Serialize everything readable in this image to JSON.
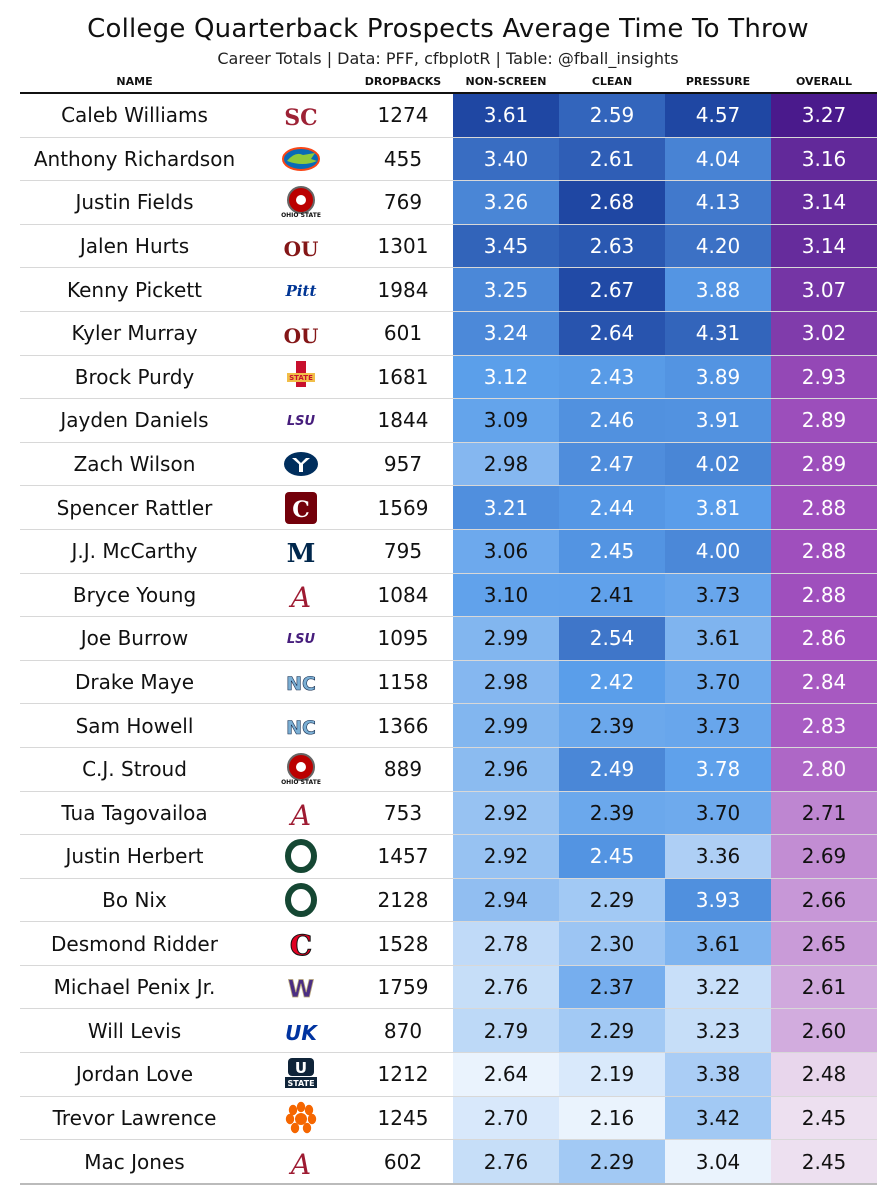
{
  "title": "College Quarterback Prospects Average Time To Throw",
  "subtitle": "Career Totals | Data: PFF, cfbplotR | Table: @fball_insights",
  "columns": {
    "name": "NAME",
    "logo": "",
    "dropbacks": "DROPBACKS",
    "non_screen": "NON-SCREEN",
    "clean": "CLEAN",
    "pressure": "PRESSURE",
    "overall": "OVERALL"
  },
  "colors": {
    "blue_light": "#eaf3fd",
    "blue_mid": "#5a9eea",
    "blue_dark": "#1f47a3",
    "purple_light": "#ede0f0",
    "purple_mid": "#a352bf",
    "purple_dark": "#4a1a8c"
  },
  "chart_data": {
    "type": "table",
    "title": "College Quarterback Prospects Average Time To Throw",
    "subtitle": "Career Totals | Data: PFF, cfbplotR | Table: @fball_insights",
    "headers": [
      "NAME",
      "",
      "DROPBACKS",
      "NON-SCREEN",
      "CLEAN",
      "PRESSURE",
      "OVERALL"
    ],
    "rows": [
      {
        "name": "Caleb Williams",
        "school": "usc",
        "dropbacks": "1274",
        "non_screen": "3.61",
        "clean": "2.59",
        "pressure": "4.57",
        "overall": "3.27"
      },
      {
        "name": "Anthony Richardson",
        "school": "florida",
        "dropbacks": "455",
        "non_screen": "3.40",
        "clean": "2.61",
        "pressure": "4.04",
        "overall": "3.16"
      },
      {
        "name": "Justin Fields",
        "school": "ohio-state",
        "dropbacks": "769",
        "non_screen": "3.26",
        "clean": "2.68",
        "pressure": "4.13",
        "overall": "3.14"
      },
      {
        "name": "Jalen Hurts",
        "school": "oklahoma",
        "dropbacks": "1301",
        "non_screen": "3.45",
        "clean": "2.63",
        "pressure": "4.20",
        "overall": "3.14"
      },
      {
        "name": "Kenny Pickett",
        "school": "pitt",
        "dropbacks": "1984",
        "non_screen": "3.25",
        "clean": "2.67",
        "pressure": "3.88",
        "overall": "3.07"
      },
      {
        "name": "Kyler Murray",
        "school": "oklahoma",
        "dropbacks": "601",
        "non_screen": "3.24",
        "clean": "2.64",
        "pressure": "4.31",
        "overall": "3.02"
      },
      {
        "name": "Brock Purdy",
        "school": "iowa-state",
        "dropbacks": "1681",
        "non_screen": "3.12",
        "clean": "2.43",
        "pressure": "3.89",
        "overall": "2.93"
      },
      {
        "name": "Jayden Daniels",
        "school": "lsu",
        "dropbacks": "1844",
        "non_screen": "3.09",
        "clean": "2.46",
        "pressure": "3.91",
        "overall": "2.89"
      },
      {
        "name": "Zach Wilson",
        "school": "byu",
        "dropbacks": "957",
        "non_screen": "2.98",
        "clean": "2.47",
        "pressure": "4.02",
        "overall": "2.89"
      },
      {
        "name": "Spencer Rattler",
        "school": "south-carolina",
        "dropbacks": "1569",
        "non_screen": "3.21",
        "clean": "2.44",
        "pressure": "3.81",
        "overall": "2.88"
      },
      {
        "name": "J.J. McCarthy",
        "school": "michigan",
        "dropbacks": "795",
        "non_screen": "3.06",
        "clean": "2.45",
        "pressure": "4.00",
        "overall": "2.88"
      },
      {
        "name": "Bryce Young",
        "school": "alabama",
        "dropbacks": "1084",
        "non_screen": "3.10",
        "clean": "2.41",
        "pressure": "3.73",
        "overall": "2.88"
      },
      {
        "name": "Joe Burrow",
        "school": "lsu",
        "dropbacks": "1095",
        "non_screen": "2.99",
        "clean": "2.54",
        "pressure": "3.61",
        "overall": "2.86"
      },
      {
        "name": "Drake Maye",
        "school": "north-carolina",
        "dropbacks": "1158",
        "non_screen": "2.98",
        "clean": "2.42",
        "pressure": "3.70",
        "overall": "2.84"
      },
      {
        "name": "Sam Howell",
        "school": "north-carolina",
        "dropbacks": "1366",
        "non_screen": "2.99",
        "clean": "2.39",
        "pressure": "3.73",
        "overall": "2.83"
      },
      {
        "name": "C.J. Stroud",
        "school": "ohio-state",
        "dropbacks": "889",
        "non_screen": "2.96",
        "clean": "2.49",
        "pressure": "3.78",
        "overall": "2.80"
      },
      {
        "name": "Tua Tagovailoa",
        "school": "alabama",
        "dropbacks": "753",
        "non_screen": "2.92",
        "clean": "2.39",
        "pressure": "3.70",
        "overall": "2.71"
      },
      {
        "name": "Justin Herbert",
        "school": "oregon",
        "dropbacks": "1457",
        "non_screen": "2.92",
        "clean": "2.45",
        "pressure": "3.36",
        "overall": "2.69"
      },
      {
        "name": "Bo Nix",
        "school": "oregon",
        "dropbacks": "2128",
        "non_screen": "2.94",
        "clean": "2.29",
        "pressure": "3.93",
        "overall": "2.66"
      },
      {
        "name": "Desmond Ridder",
        "school": "cincinnati",
        "dropbacks": "1528",
        "non_screen": "2.78",
        "clean": "2.30",
        "pressure": "3.61",
        "overall": "2.65"
      },
      {
        "name": "Michael Penix Jr.",
        "school": "washington",
        "dropbacks": "1759",
        "non_screen": "2.76",
        "clean": "2.37",
        "pressure": "3.22",
        "overall": "2.61"
      },
      {
        "name": "Will Levis",
        "school": "kentucky",
        "dropbacks": "870",
        "non_screen": "2.79",
        "clean": "2.29",
        "pressure": "3.23",
        "overall": "2.60"
      },
      {
        "name": "Jordan Love",
        "school": "utah-state",
        "dropbacks": "1212",
        "non_screen": "2.64",
        "clean": "2.19",
        "pressure": "3.38",
        "overall": "2.48"
      },
      {
        "name": "Trevor Lawrence",
        "school": "clemson",
        "dropbacks": "1245",
        "non_screen": "2.70",
        "clean": "2.16",
        "pressure": "3.42",
        "overall": "2.45"
      },
      {
        "name": "Mac Jones",
        "school": "alabama",
        "dropbacks": "602",
        "non_screen": "2.76",
        "clean": "2.29",
        "pressure": "3.04",
        "overall": "2.45"
      }
    ],
    "logo_marks": {
      "usc": "SC",
      "florida": "",
      "ohio-state": "OHIO STATE",
      "oklahoma": "OU",
      "pitt": "Pitt",
      "iowa-state": "I STATE",
      "lsu": "LSU",
      "byu": "",
      "south-carolina": "C",
      "michigan": "M",
      "alabama": "A",
      "north-carolina": "NC",
      "oregon": "O",
      "cincinnati": "C",
      "washington": "W",
      "kentucky": "UK",
      "utah-state": "U STATE",
      "clemson": ""
    }
  }
}
